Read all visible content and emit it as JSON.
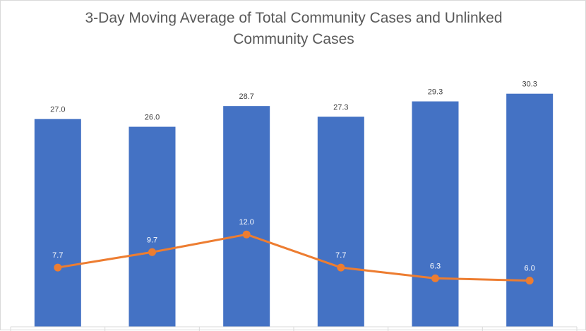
{
  "chart_data": {
    "type": "bar",
    "title_line1": "3-Day Moving Average of Total Community Cases and Unlinked",
    "title_line2": "Community Cases",
    "categories": [
      "",
      "",
      "",
      "",
      "",
      ""
    ],
    "series": [
      {
        "type": "bar",
        "values": [
          27.0,
          26.0,
          28.7,
          27.3,
          29.3,
          30.3
        ],
        "labels": [
          "27.0",
          "26.0",
          "28.7",
          "27.3",
          "29.3",
          "30.3"
        ],
        "color": "#4472C4"
      },
      {
        "type": "line",
        "values": [
          7.7,
          9.7,
          12.0,
          7.7,
          6.3,
          6.0
        ],
        "labels": [
          "7.7",
          "9.7",
          "12.0",
          "7.7",
          "6.3",
          "6.0"
        ],
        "color": "#ED7D31"
      }
    ],
    "ylim": [
      0,
      40
    ],
    "grid": false,
    "legend": "none"
  }
}
